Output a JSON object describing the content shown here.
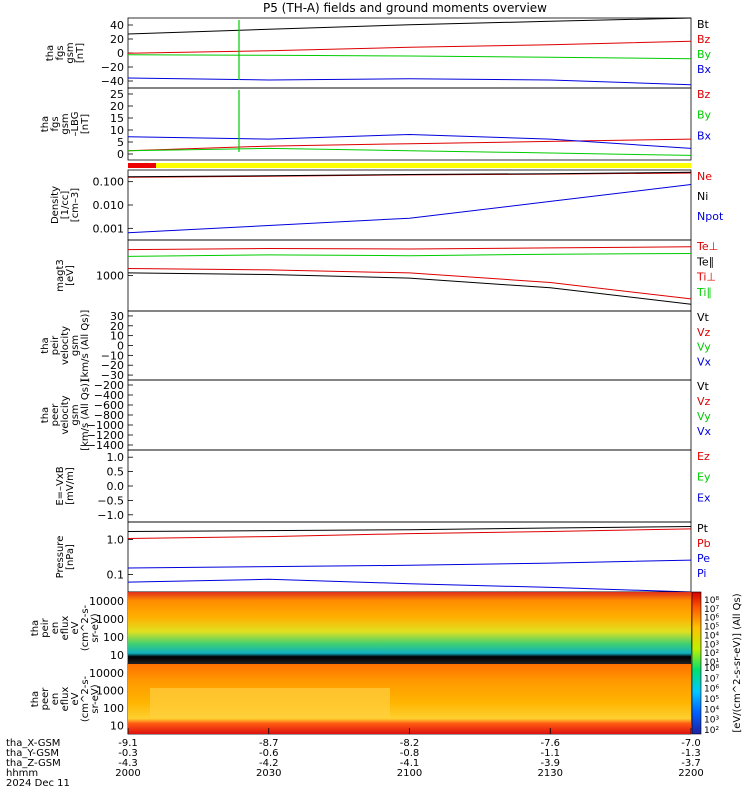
{
  "title": "P5 (TH-A) fields and ground moments overview",
  "colors": {
    "black": "#000000",
    "red": "#dd0000",
    "green": "#00cc00",
    "blue": "#0000dd",
    "yellow": "#ffff00"
  },
  "chart_data": [
    {
      "id": "fgs",
      "type": "line",
      "ylabel": [
        "tha",
        "fgs",
        "gsm",
        "[nT]"
      ],
      "yticks": [
        "40",
        "20",
        "0",
        "−20",
        "−40"
      ],
      "ylim": [
        -50,
        55
      ],
      "legend": [
        {
          "name": "Bt",
          "color": "#000000"
        },
        {
          "name": "Bz",
          "color": "#dd0000"
        },
        {
          "name": "By",
          "color": "#00cc00"
        },
        {
          "name": "Bx",
          "color": "#0000dd"
        }
      ],
      "series": [
        {
          "name": "Bt",
          "x": [
            2000,
            2030,
            2100,
            2130,
            2200
          ],
          "y": [
            31,
            38,
            45,
            50,
            55
          ]
        },
        {
          "name": "Bz",
          "x": [
            2000,
            2030,
            2100,
            2130,
            2200
          ],
          "y": [
            2,
            6,
            11,
            15,
            20
          ]
        },
        {
          "name": "By",
          "x": [
            2000,
            2030,
            2100,
            2130,
            2200
          ],
          "y": [
            0,
            -1,
            -2,
            -4,
            -6
          ]
        },
        {
          "name": "Bx",
          "x": [
            2000,
            2030,
            2100,
            2130,
            2200
          ],
          "y": [
            -35,
            -38,
            -36,
            -38,
            -45
          ]
        }
      ]
    },
    {
      "id": "fgs_dsl",
      "type": "line",
      "ylabel": [
        "tha",
        "fgs",
        "gsm",
        "–LBG",
        "[nT]"
      ],
      "yticks": [
        "25",
        "20",
        "15",
        "10",
        "5",
        "0"
      ],
      "ylim": [
        -2,
        29
      ],
      "legend": [
        {
          "name": "Bz",
          "color": "#dd0000"
        },
        {
          "name": "By",
          "color": "#00cc00"
        },
        {
          "name": "Bx",
          "color": "#0000dd"
        }
      ],
      "series": [
        {
          "name": "Bz",
          "x": [
            2000,
            2030,
            2100,
            2130,
            2200
          ],
          "y": [
            2,
            4,
            5,
            6,
            7
          ]
        },
        {
          "name": "By",
          "x": [
            2000,
            2030,
            2100,
            2130,
            2200
          ],
          "y": [
            2,
            3,
            2,
            1,
            0
          ]
        },
        {
          "name": "Bx",
          "x": [
            2000,
            2030,
            2100,
            2130,
            2200
          ],
          "y": [
            8,
            7,
            9,
            7,
            3
          ]
        }
      ]
    },
    {
      "id": "density",
      "type": "line",
      "scale": "log",
      "ylabel": [
        "Density",
        "[1/cc]",
        "[cm–3]"
      ],
      "yticks": [
        "0.100",
        "0.010",
        "0.001"
      ],
      "ylim": [
        0.0005,
        0.4
      ],
      "legend": [
        {
          "name": "Ne",
          "color": "#dd0000"
        },
        {
          "name": "Ni",
          "color": "#000000"
        },
        {
          "name": "Npot",
          "color": "#0000dd"
        }
      ],
      "series": [
        {
          "name": "Ne",
          "x": [
            2000,
            2030,
            2100,
            2130,
            2200
          ],
          "y": [
            0.2,
            0.22,
            0.25,
            0.27,
            0.3
          ]
        },
        {
          "name": "Ni",
          "x": [
            2000,
            2030,
            2100,
            2130,
            2200
          ],
          "y": [
            0.21,
            0.23,
            0.26,
            0.28,
            0.32
          ]
        },
        {
          "name": "Npot",
          "x": [
            2000,
            2030,
            2100,
            2130,
            2200
          ],
          "y": [
            0.001,
            0.002,
            0.004,
            0.02,
            0.1
          ]
        }
      ]
    },
    {
      "id": "temp",
      "type": "line",
      "scale": "log",
      "ylabel": [
        "magt3",
        "[eV]"
      ],
      "yticks": [
        "1000"
      ],
      "ylim": [
        300,
        6000
      ],
      "legend": [
        {
          "name": "Te⊥",
          "color": "#dd0000"
        },
        {
          "name": "Te∥",
          "color": "#000000"
        },
        {
          "name": "Ti⊥",
          "color": "#dd0000"
        },
        {
          "name": "Ti∥",
          "color": "#00cc00"
        }
      ],
      "series": [
        {
          "name": "Te⊥",
          "x": [
            2000,
            2030,
            2100,
            2130,
            2200
          ],
          "y": [
            4000,
            4200,
            4100,
            4300,
            4500
          ]
        },
        {
          "name": "Ti∥",
          "x": [
            2000,
            2030,
            2100,
            2130,
            2200
          ],
          "y": [
            3000,
            3200,
            3100,
            3300,
            3400
          ]
        },
        {
          "name": "Ti⊥",
          "x": [
            2000,
            2030,
            2100,
            2130,
            2200
          ],
          "y": [
            1800,
            1700,
            1500,
            1000,
            500
          ]
        },
        {
          "name": "Te∥",
          "x": [
            2000,
            2030,
            2100,
            2130,
            2200
          ],
          "y": [
            1500,
            1400,
            1200,
            800,
            400
          ]
        }
      ]
    },
    {
      "id": "peir_vel",
      "type": "line",
      "ylabel": [
        "tha",
        "peir",
        "velocity",
        "gsm",
        "[km/s (All Qs)]"
      ],
      "yticks": [
        "30",
        "20",
        "10",
        "0",
        "−10",
        "−20",
        "−30"
      ],
      "ylim": [
        -30,
        35
      ],
      "legend": [
        {
          "name": "Vt",
          "color": "#000000"
        },
        {
          "name": "Vz",
          "color": "#dd0000"
        },
        {
          "name": "Vy",
          "color": "#00cc00"
        },
        {
          "name": "Vx",
          "color": "#0000dd"
        }
      ],
      "series": []
    },
    {
      "id": "peer_vel",
      "type": "line",
      "ylabel": [
        "tha",
        "peer",
        "velocity",
        "gsm",
        "[km/s (All Qs)]"
      ],
      "yticks": [
        "−200",
        "−400",
        "−600",
        "−800",
        "−1000",
        "−1200",
        "−1400"
      ],
      "ylim": [
        -1450,
        -150
      ],
      "legend": [
        {
          "name": "Vt",
          "color": "#000000"
        },
        {
          "name": "Vz",
          "color": "#dd0000"
        },
        {
          "name": "Vy",
          "color": "#00cc00"
        },
        {
          "name": "Vx",
          "color": "#0000dd"
        }
      ],
      "series": []
    },
    {
      "id": "efield",
      "type": "line",
      "ylabel": [
        "E=–VxB",
        "[mV/m]"
      ],
      "yticks": [
        "1.0",
        "0.5",
        "0.0",
        "−0.5",
        "−1.0"
      ],
      "ylim": [
        -1.15,
        1.15
      ],
      "legend": [
        {
          "name": "Ez",
          "color": "#dd0000"
        },
        {
          "name": "Ey",
          "color": "#00cc00"
        },
        {
          "name": "Ex",
          "color": "#0000dd"
        }
      ],
      "series": []
    },
    {
      "id": "pressure",
      "type": "line",
      "scale": "log",
      "ylabel": [
        "Pressure",
        "[nPa]"
      ],
      "yticks": [
        "1.0",
        "0.1"
      ],
      "ylim": [
        0.035,
        1.6
      ],
      "legend": [
        {
          "name": "Pt",
          "color": "#000000"
        },
        {
          "name": "Pb",
          "color": "#dd0000"
        },
        {
          "name": "Pe",
          "color": "#0000dd"
        },
        {
          "name": "Pi",
          "color": "#0000dd"
        }
      ],
      "series": [
        {
          "name": "Pt",
          "x": [
            2000,
            2030,
            2100,
            2130,
            2200
          ],
          "y": [
            0.95,
            1.0,
            1.05,
            1.15,
            1.25
          ]
        },
        {
          "name": "Pb",
          "x": [
            2000,
            2030,
            2100,
            2130,
            2200
          ],
          "y": [
            0.65,
            0.72,
            0.85,
            0.95,
            1.1
          ]
        },
        {
          "name": "Pe",
          "x": [
            2000,
            2030,
            2100,
            2130,
            2200
          ],
          "y": [
            0.13,
            0.14,
            0.15,
            0.17,
            0.2
          ]
        },
        {
          "name": "Pi",
          "x": [
            2000,
            2030,
            2100,
            2130,
            2200
          ],
          "y": [
            0.06,
            0.07,
            0.055,
            0.045,
            0.035
          ]
        }
      ]
    },
    {
      "id": "peir_spec",
      "type": "heatmap",
      "ylabel": [
        "tha",
        "peir",
        "en",
        "eflux",
        "eV",
        "(cm^2-s-",
        "sr-eV)"
      ],
      "yticks": [
        "10000",
        "1000",
        "100",
        "10"
      ]
    },
    {
      "id": "peer_spec",
      "type": "heatmap",
      "ylabel": [
        "tha",
        "peer",
        "en",
        "eflux",
        "eV",
        "(cm^2-s-",
        "sr-eV)"
      ],
      "yticks": [
        "10000",
        "1000",
        "100",
        "10"
      ]
    }
  ],
  "colorbar": {
    "ticks_top": [
      "10⁸",
      "10⁷",
      "10⁶",
      "10⁵",
      "10⁴",
      "10³",
      "10²",
      "10¹"
    ],
    "ticks_bottom": [
      "10⁸",
      "10⁷",
      "10⁶",
      "10⁵",
      "10⁴",
      "10³",
      "10²"
    ],
    "label": "[eV/(cm^2-s-sr-eV)] (All Qs)"
  },
  "x_axis": {
    "row_labels": [
      "tha_X-GSM",
      "tha_Y-GSM",
      "tha_Z-GSM",
      "hhmm",
      "2024 Dec 11"
    ],
    "ticks": [
      {
        "x": "-9.1",
        "y": "-0.3",
        "z": "-4.3",
        "t": "2000"
      },
      {
        "x": "-8.7",
        "y": "-0.6",
        "z": "-4.2",
        "t": "2030"
      },
      {
        "x": "-8.2",
        "y": "-0.8",
        "z": "-4.1",
        "t": "2100"
      },
      {
        "x": "-7.6",
        "y": "-1.1",
        "z": "-3.9",
        "t": "2130"
      },
      {
        "x": "-7.0",
        "y": "-1.3",
        "z": "-3.7",
        "t": "2200"
      }
    ]
  }
}
